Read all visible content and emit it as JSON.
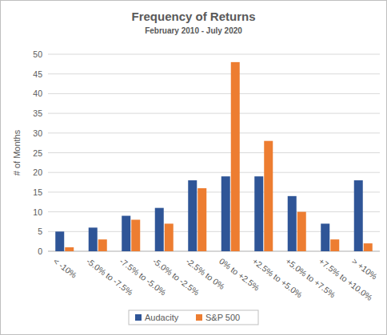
{
  "chart_data": {
    "type": "bar",
    "title": "Frequency of Returns",
    "subtitle": "February 2010 - July 2020",
    "y_label": "# of Months",
    "categories": [
      "< -10%",
      "-5.0% to -7.5%",
      "-7.5% to -5.0%",
      "-5.0% to -2.5%",
      "-2.5% to 0%",
      "0% to +2.5%",
      "+2.5% to +5.0%",
      "+5.0% to +7.5%",
      "+7.5% to +10.0%",
      "> +10%"
    ],
    "series": [
      {
        "name": "Audacity",
        "color": "#2f5597",
        "values": [
          5,
          6,
          9,
          11,
          18,
          19,
          19,
          14,
          7,
          18
        ]
      },
      {
        "name": "S&P 500",
        "color": "#ed7d31",
        "values": [
          1,
          3,
          8,
          7,
          16,
          48,
          28,
          10,
          3,
          2
        ]
      }
    ],
    "ylim": [
      0,
      50
    ],
    "yticks": [
      0,
      5,
      10,
      15,
      20,
      25,
      30,
      35,
      40,
      45,
      50
    ],
    "grid": true,
    "legend": "bottom"
  }
}
